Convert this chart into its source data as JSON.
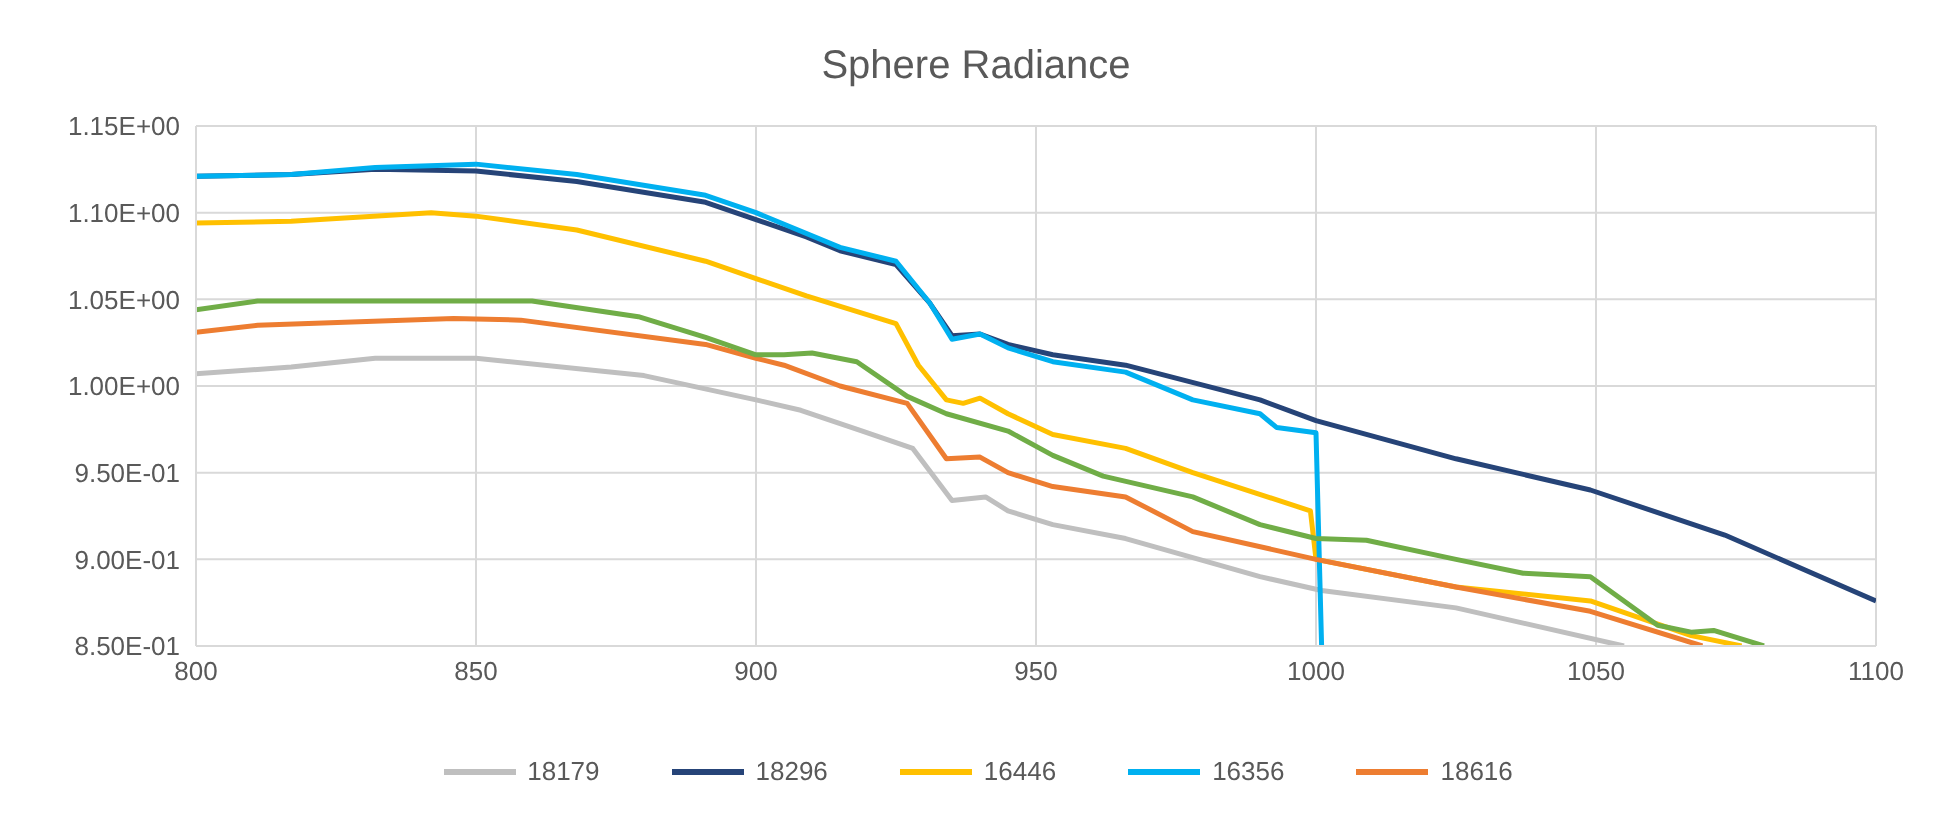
{
  "chart_data": {
    "type": "line",
    "title": "Sphere Radiance",
    "xlim": [
      800,
      1100
    ],
    "xticks": [
      800,
      850,
      900,
      950,
      1000,
      1050,
      1100
    ],
    "ylim": [
      0.85,
      1.15
    ],
    "yticks": [
      {
        "value": 0.85,
        "label": "8.50E-01"
      },
      {
        "value": 0.9,
        "label": "9.00E-01"
      },
      {
        "value": 0.95,
        "label": "9.50E-01"
      },
      {
        "value": 1.0,
        "label": "1.00E+00"
      },
      {
        "value": 1.05,
        "label": "1.05E+00"
      },
      {
        "value": 1.1,
        "label": "1.10E+00"
      },
      {
        "value": 1.15,
        "label": "1.15E+00"
      }
    ],
    "grid": true,
    "legend": "bottom",
    "marker": "none",
    "line_style": "solid",
    "series": [
      {
        "name": "18179",
        "color": "#bfbfbf",
        "x": [
          800,
          817,
          832,
          850,
          880,
          900,
          908,
          919,
          928,
          935,
          941,
          945,
          953,
          966,
          990,
          1001,
          1025,
          1055
        ],
        "values": [
          1.007,
          1.011,
          1.016,
          1.016,
          1.006,
          0.992,
          0.986,
          0.974,
          0.964,
          0.934,
          0.936,
          0.928,
          0.92,
          0.912,
          0.89,
          0.882,
          0.872,
          0.85
        ]
      },
      {
        "name": "18296",
        "color": "#264478",
        "x": [
          800,
          817,
          832,
          850,
          868,
          891,
          900,
          909,
          915,
          925,
          931,
          935,
          940,
          945,
          953,
          966,
          990,
          1000,
          1025,
          1049,
          1073,
          1100
        ],
        "values": [
          1.121,
          1.122,
          1.125,
          1.124,
          1.118,
          1.106,
          1.096,
          1.086,
          1.078,
          1.07,
          1.048,
          1.029,
          1.03,
          1.024,
          1.018,
          1.012,
          0.992,
          0.98,
          0.958,
          0.94,
          0.914,
          0.876
        ]
      },
      {
        "name": "16446",
        "color": "#ffc000",
        "x": [
          800,
          817,
          842,
          850,
          868,
          891,
          900,
          909,
          925,
          929,
          934,
          937,
          940,
          945,
          953,
          966,
          978,
          999,
          1000,
          1025,
          1049,
          1067,
          1076
        ],
        "values": [
          1.094,
          1.095,
          1.1,
          1.098,
          1.09,
          1.072,
          1.062,
          1.052,
          1.036,
          1.012,
          0.992,
          0.99,
          0.993,
          0.984,
          0.972,
          0.964,
          0.95,
          0.928,
          0.9,
          0.884,
          0.876,
          0.856,
          0.85
        ]
      },
      {
        "name": "16356",
        "color": "#00b0f0",
        "x": [
          800,
          817,
          832,
          850,
          868,
          891,
          900,
          915,
          925,
          931,
          935,
          940,
          945,
          953,
          966,
          978,
          990,
          993,
          1000,
          1001
        ],
        "values": [
          1.121,
          1.122,
          1.126,
          1.128,
          1.122,
          1.11,
          1.1,
          1.08,
          1.072,
          1.048,
          1.027,
          1.03,
          1.022,
          1.014,
          1.008,
          0.992,
          0.984,
          0.976,
          0.973,
          0.85
        ]
      },
      {
        "name": "18616",
        "color": "#ed7d31",
        "x": [
          800,
          811,
          846,
          858,
          891,
          900,
          905,
          915,
          927,
          934,
          940,
          945,
          953,
          966,
          978,
          1000,
          1025,
          1049,
          1069
        ],
        "values": [
          1.031,
          1.035,
          1.039,
          1.038,
          1.024,
          1.016,
          1.012,
          1.0,
          0.99,
          0.958,
          0.959,
          0.95,
          0.942,
          0.936,
          0.916,
          0.9,
          0.884,
          0.87,
          0.85
        ]
      },
      {
        "color": "#70ad47",
        "x": [
          800,
          811,
          860,
          879,
          891,
          900,
          905,
          910,
          918,
          927,
          934,
          945,
          953,
          962,
          978,
          990,
          1000,
          1009,
          1025,
          1037,
          1049,
          1061,
          1067,
          1071,
          1080
        ],
        "values": [
          1.044,
          1.049,
          1.049,
          1.04,
          1.028,
          1.018,
          1.018,
          1.019,
          1.014,
          0.994,
          0.984,
          0.974,
          0.96,
          0.948,
          0.936,
          0.92,
          0.912,
          0.911,
          0.9,
          0.892,
          0.89,
          0.862,
          0.858,
          0.859,
          0.85
        ]
      }
    ]
  }
}
